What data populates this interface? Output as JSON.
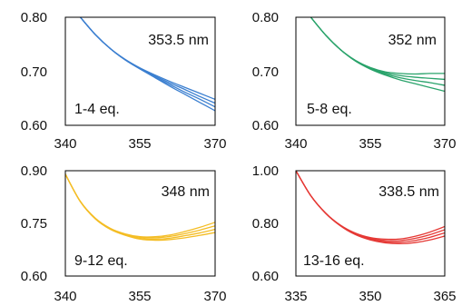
{
  "chart_data": [
    {
      "type": "line",
      "annotation_wavelength": "353.5 nm",
      "annotation_eq": "1-4 eq.",
      "xlim": [
        340,
        370
      ],
      "xticks": [
        340,
        355,
        370
      ],
      "xtick_labels": [
        "340",
        "355",
        "370"
      ],
      "ylim": [
        0.6,
        0.8
      ],
      "yticks": [
        0.6,
        0.7,
        0.8
      ],
      "ytick_labels": [
        "0.60",
        "0.70",
        "0.80"
      ],
      "grid": false,
      "color": "#3b7fd0",
      "x": [
        343,
        346,
        349,
        352,
        355,
        358,
        361,
        364,
        367,
        370
      ],
      "series": [
        {
          "values": [
            0.8,
            0.768,
            0.742,
            0.721,
            0.704,
            0.688,
            0.672,
            0.657,
            0.642,
            0.627
          ]
        },
        {
          "values": [
            0.8,
            0.768,
            0.742,
            0.721,
            0.704,
            0.689,
            0.675,
            0.661,
            0.648,
            0.634
          ]
        },
        {
          "values": [
            0.8,
            0.768,
            0.742,
            0.721,
            0.705,
            0.691,
            0.678,
            0.666,
            0.653,
            0.641
          ]
        },
        {
          "values": [
            0.8,
            0.768,
            0.742,
            0.722,
            0.706,
            0.693,
            0.681,
            0.67,
            0.659,
            0.648
          ]
        }
      ]
    },
    {
      "type": "line",
      "annotation_wavelength": "352 nm",
      "annotation_eq": "5-8 eq.",
      "xlim": [
        340,
        370
      ],
      "xticks": [
        340,
        355,
        370
      ],
      "xtick_labels": [
        "340",
        "355",
        "370"
      ],
      "ylim": [
        0.6,
        0.8
      ],
      "yticks": [
        0.6,
        0.7,
        0.8
      ],
      "ytick_labels": [
        "0.60",
        "0.70",
        "0.80"
      ],
      "grid": false,
      "color": "#2aa36b",
      "x": [
        343,
        346,
        349,
        352,
        355,
        358,
        361,
        364,
        367,
        370
      ],
      "series": [
        {
          "values": [
            0.8,
            0.767,
            0.74,
            0.719,
            0.704,
            0.693,
            0.684,
            0.677,
            0.67,
            0.663
          ]
        },
        {
          "values": [
            0.8,
            0.767,
            0.74,
            0.719,
            0.705,
            0.695,
            0.688,
            0.683,
            0.679,
            0.674
          ]
        },
        {
          "values": [
            0.8,
            0.767,
            0.74,
            0.72,
            0.706,
            0.697,
            0.692,
            0.689,
            0.687,
            0.685
          ]
        },
        {
          "values": [
            0.8,
            0.767,
            0.74,
            0.72,
            0.707,
            0.699,
            0.696,
            0.695,
            0.696,
            0.696
          ]
        }
      ]
    },
    {
      "type": "line",
      "annotation_wavelength": "348 nm",
      "annotation_eq": "9-12 eq.",
      "xlim": [
        340,
        370
      ],
      "xticks": [
        340,
        355,
        370
      ],
      "xtick_labels": [
        "340",
        "355",
        "370"
      ],
      "ylim": [
        0.6,
        0.9
      ],
      "yticks": [
        0.6,
        0.75,
        0.9
      ],
      "ytick_labels": [
        "0.60",
        "0.75",
        "0.90"
      ],
      "grid": false,
      "color": "#f4bd25",
      "x": [
        340,
        343,
        346,
        349,
        352,
        355,
        358,
        361,
        364,
        367,
        370
      ],
      "series": [
        {
          "values": [
            0.89,
            0.812,
            0.763,
            0.733,
            0.716,
            0.705,
            0.702,
            0.704,
            0.709,
            0.716,
            0.724
          ]
        },
        {
          "values": [
            0.89,
            0.812,
            0.763,
            0.734,
            0.717,
            0.707,
            0.705,
            0.708,
            0.715,
            0.723,
            0.733
          ]
        },
        {
          "values": [
            0.89,
            0.812,
            0.764,
            0.735,
            0.719,
            0.71,
            0.709,
            0.713,
            0.721,
            0.731,
            0.743
          ]
        },
        {
          "values": [
            0.89,
            0.813,
            0.765,
            0.736,
            0.72,
            0.712,
            0.712,
            0.717,
            0.727,
            0.739,
            0.753
          ]
        }
      ]
    },
    {
      "type": "line",
      "annotation_wavelength": "338.5 nm",
      "annotation_eq": "13-16 eq.",
      "xlim": [
        335,
        365
      ],
      "xticks": [
        335,
        350,
        365
      ],
      "xtick_labels": [
        "335",
        "350",
        "365"
      ],
      "ylim": [
        0.6,
        1.0
      ],
      "yticks": [
        0.6,
        0.8,
        1.0
      ],
      "ytick_labels": [
        "0.60",
        "0.80",
        "1.00"
      ],
      "grid": false,
      "color": "#e53935",
      "x": [
        335,
        338,
        341,
        344,
        347,
        350,
        353,
        356,
        359,
        362,
        365
      ],
      "series": [
        {
          "values": [
            1.0,
            0.905,
            0.838,
            0.79,
            0.757,
            0.737,
            0.726,
            0.723,
            0.727,
            0.737,
            0.752
          ]
        },
        {
          "values": [
            1.0,
            0.905,
            0.838,
            0.791,
            0.759,
            0.74,
            0.73,
            0.729,
            0.735,
            0.747,
            0.764
          ]
        },
        {
          "values": [
            1.0,
            0.905,
            0.839,
            0.792,
            0.761,
            0.743,
            0.735,
            0.735,
            0.743,
            0.757,
            0.776
          ]
        },
        {
          "values": [
            1.0,
            0.905,
            0.839,
            0.793,
            0.763,
            0.746,
            0.74,
            0.741,
            0.751,
            0.767,
            0.788
          ]
        }
      ]
    }
  ]
}
